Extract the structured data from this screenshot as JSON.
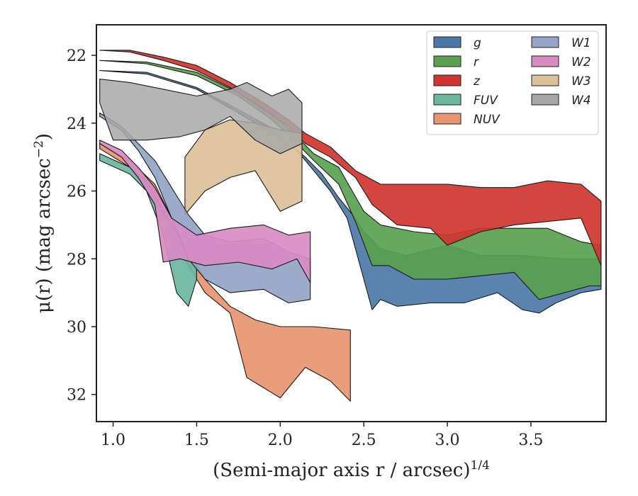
{
  "chart_data": {
    "type": "area",
    "xlabel": "(Semi-major axis r / arcsec)",
    "xlabel_italic": "r",
    "xlabel_exponent": "1/4",
    "ylabel": "μ(r) (mag arcsec",
    "ylabel_exponent": "−2",
    "ylabel_close": ")",
    "xlim": [
      0.9,
      3.95
    ],
    "ylim": [
      32.8,
      21.1
    ],
    "y_inverted": true,
    "xticks": [
      1.0,
      1.5,
      2.0,
      2.5,
      3.0,
      3.5
    ],
    "xtick_labels": [
      "1.0",
      "1.5",
      "2.0",
      "2.5",
      "3.0",
      "3.5"
    ],
    "yticks": [
      22,
      24,
      26,
      28,
      30,
      32
    ],
    "ytick_labels": [
      "22",
      "24",
      "26",
      "28",
      "30",
      "32"
    ],
    "grid": false,
    "legend_position": "top-right",
    "legend_columns": 2,
    "series": [
      {
        "name": "g",
        "color": "#4c78a8",
        "upper": [
          [
            0.92,
            22.45
          ],
          [
            1.2,
            22.5
          ],
          [
            1.5,
            22.95
          ],
          [
            1.75,
            23.6
          ],
          [
            1.95,
            24.15
          ],
          [
            2.05,
            24.6
          ],
          [
            2.15,
            25.0
          ],
          [
            2.25,
            25.5
          ],
          [
            2.35,
            26.2
          ],
          [
            2.45,
            26.8
          ],
          [
            2.5,
            27.2
          ],
          [
            2.6,
            27.7
          ],
          [
            2.75,
            27.9
          ],
          [
            3.0,
            27.6
          ],
          [
            3.2,
            27.9
          ],
          [
            3.45,
            27.9
          ],
          [
            3.7,
            28.0
          ],
          [
            3.92,
            28.0
          ]
        ],
        "lower": [
          [
            0.92,
            22.45
          ],
          [
            1.2,
            22.55
          ],
          [
            1.5,
            23.0
          ],
          [
            1.75,
            23.7
          ],
          [
            1.95,
            24.3
          ],
          [
            2.1,
            24.8
          ],
          [
            2.2,
            25.4
          ],
          [
            2.3,
            26.0
          ],
          [
            2.4,
            26.8
          ],
          [
            2.5,
            28.6
          ],
          [
            2.55,
            29.5
          ],
          [
            2.6,
            29.2
          ],
          [
            2.7,
            29.4
          ],
          [
            2.9,
            29.3
          ],
          [
            3.1,
            29.3
          ],
          [
            3.3,
            29.0
          ],
          [
            3.45,
            29.5
          ],
          [
            3.55,
            29.6
          ],
          [
            3.65,
            29.3
          ],
          [
            3.8,
            29.0
          ],
          [
            3.92,
            28.9
          ]
        ]
      },
      {
        "name": "r",
        "color": "#59a14f",
        "upper": [
          [
            0.92,
            22.15
          ],
          [
            1.2,
            22.2
          ],
          [
            1.5,
            22.5
          ],
          [
            1.75,
            23.1
          ],
          [
            1.95,
            23.7
          ],
          [
            2.1,
            24.4
          ],
          [
            2.2,
            24.9
          ],
          [
            2.35,
            25.3
          ],
          [
            2.5,
            26.6
          ],
          [
            2.6,
            27.0
          ],
          [
            2.8,
            27.2
          ],
          [
            3.0,
            27.3
          ],
          [
            3.2,
            27.1
          ],
          [
            3.4,
            27.1
          ],
          [
            3.6,
            27.1
          ],
          [
            3.8,
            27.5
          ],
          [
            3.92,
            27.6
          ]
        ],
        "lower": [
          [
            0.92,
            22.15
          ],
          [
            1.2,
            22.25
          ],
          [
            1.5,
            22.6
          ],
          [
            1.75,
            23.2
          ],
          [
            1.95,
            23.9
          ],
          [
            2.1,
            24.6
          ],
          [
            2.2,
            25.1
          ],
          [
            2.35,
            25.8
          ],
          [
            2.45,
            26.9
          ],
          [
            2.55,
            28.2
          ],
          [
            2.65,
            28.2
          ],
          [
            2.8,
            28.6
          ],
          [
            3.0,
            28.6
          ],
          [
            3.2,
            28.5
          ],
          [
            3.4,
            28.4
          ],
          [
            3.55,
            29.2
          ],
          [
            3.7,
            29.0
          ],
          [
            3.85,
            28.8
          ],
          [
            3.92,
            28.8
          ]
        ]
      },
      {
        "name": "z",
        "color": "#d1352f",
        "upper": [
          [
            0.92,
            21.85
          ],
          [
            1.1,
            21.85
          ],
          [
            1.3,
            22.05
          ],
          [
            1.5,
            22.3
          ],
          [
            1.7,
            22.8
          ],
          [
            1.9,
            23.4
          ],
          [
            2.05,
            23.9
          ],
          [
            2.15,
            24.3
          ],
          [
            2.3,
            24.7
          ],
          [
            2.45,
            25.4
          ],
          [
            2.6,
            25.8
          ],
          [
            2.8,
            25.8
          ],
          [
            3.0,
            25.8
          ],
          [
            3.2,
            25.9
          ],
          [
            3.4,
            25.9
          ],
          [
            3.6,
            25.7
          ],
          [
            3.8,
            25.8
          ],
          [
            3.92,
            26.3
          ]
        ],
        "lower": [
          [
            0.92,
            21.85
          ],
          [
            1.1,
            21.9
          ],
          [
            1.3,
            22.15
          ],
          [
            1.5,
            22.45
          ],
          [
            1.7,
            22.95
          ],
          [
            1.9,
            23.6
          ],
          [
            2.05,
            24.1
          ],
          [
            2.15,
            24.6
          ],
          [
            2.3,
            25.0
          ],
          [
            2.45,
            25.6
          ],
          [
            2.55,
            26.4
          ],
          [
            2.7,
            27.0
          ],
          [
            2.9,
            27.1
          ],
          [
            3.0,
            27.6
          ],
          [
            3.2,
            27.2
          ],
          [
            3.4,
            27.0
          ],
          [
            3.6,
            26.9
          ],
          [
            3.8,
            26.8
          ],
          [
            3.92,
            28.2
          ]
        ]
      },
      {
        "name": "FUV",
        "color": "#6ab69f",
        "upper": [
          [
            0.92,
            24.9
          ],
          [
            1.1,
            25.3
          ],
          [
            1.2,
            25.7
          ],
          [
            1.3,
            26.6
          ],
          [
            1.4,
            27.4
          ],
          [
            1.5,
            28.1
          ]
        ],
        "lower": [
          [
            0.92,
            25.1
          ],
          [
            1.1,
            25.5
          ],
          [
            1.2,
            26.0
          ],
          [
            1.3,
            27.3
          ],
          [
            1.38,
            29.0
          ],
          [
            1.45,
            29.4
          ],
          [
            1.5,
            28.6
          ]
        ]
      },
      {
        "name": "NUV",
        "color": "#e8956f",
        "upper": [
          [
            0.92,
            24.6
          ],
          [
            1.1,
            25.1
          ],
          [
            1.25,
            25.8
          ],
          [
            1.4,
            27.3
          ],
          [
            1.55,
            28.6
          ],
          [
            1.7,
            29.4
          ],
          [
            1.85,
            29.8
          ],
          [
            2.0,
            30.0
          ],
          [
            2.2,
            30.0
          ],
          [
            2.42,
            30.1
          ]
        ],
        "lower": [
          [
            0.92,
            24.75
          ],
          [
            1.1,
            25.3
          ],
          [
            1.25,
            26.3
          ],
          [
            1.4,
            27.8
          ],
          [
            1.55,
            29.0
          ],
          [
            1.7,
            29.6
          ],
          [
            1.8,
            31.5
          ],
          [
            1.9,
            31.8
          ],
          [
            2.0,
            32.1
          ],
          [
            2.15,
            31.2
          ],
          [
            2.3,
            31.6
          ],
          [
            2.42,
            32.2
          ]
        ]
      },
      {
        "name": "W1",
        "color": "#94a4c6",
        "upper": [
          [
            0.92,
            23.7
          ],
          [
            1.05,
            24.1
          ],
          [
            1.15,
            24.6
          ],
          [
            1.25,
            25.1
          ],
          [
            1.35,
            25.9
          ],
          [
            1.45,
            26.7
          ],
          [
            1.55,
            27.3
          ],
          [
            1.7,
            27.5
          ],
          [
            1.9,
            27.4
          ],
          [
            2.05,
            27.8
          ],
          [
            2.18,
            28.0
          ]
        ],
        "lower": [
          [
            0.92,
            23.8
          ],
          [
            1.05,
            24.2
          ],
          [
            1.15,
            24.8
          ],
          [
            1.25,
            25.6
          ],
          [
            1.35,
            26.8
          ],
          [
            1.45,
            28.0
          ],
          [
            1.55,
            28.6
          ],
          [
            1.7,
            29.0
          ],
          [
            1.9,
            28.9
          ],
          [
            2.05,
            29.3
          ],
          [
            2.18,
            29.2
          ]
        ]
      },
      {
        "name": "W2",
        "color": "#d98bc4",
        "upper": [
          [
            0.92,
            24.5
          ],
          [
            1.05,
            24.8
          ],
          [
            1.15,
            25.3
          ],
          [
            1.25,
            25.9
          ],
          [
            1.35,
            26.8
          ],
          [
            1.5,
            27.3
          ],
          [
            1.7,
            27.1
          ],
          [
            1.9,
            27.0
          ],
          [
            2.05,
            27.3
          ],
          [
            2.18,
            27.2
          ]
        ],
        "lower": [
          [
            0.92,
            24.6
          ],
          [
            1.05,
            25.0
          ],
          [
            1.15,
            25.6
          ],
          [
            1.25,
            26.4
          ],
          [
            1.3,
            28.1
          ],
          [
            1.4,
            28.0
          ],
          [
            1.55,
            28.2
          ],
          [
            1.75,
            28.1
          ],
          [
            1.95,
            28.3
          ],
          [
            2.1,
            28.0
          ],
          [
            2.18,
            28.7
          ]
        ]
      },
      {
        "name": "W3",
        "color": "#dcc09a",
        "upper": [
          [
            1.43,
            25.0
          ],
          [
            1.55,
            24.2
          ],
          [
            1.7,
            23.9
          ],
          [
            1.85,
            24.0
          ],
          [
            2.0,
            24.2
          ],
          [
            2.13,
            24.3
          ]
        ],
        "lower": [
          [
            1.43,
            26.7
          ],
          [
            1.55,
            26.0
          ],
          [
            1.7,
            25.6
          ],
          [
            1.85,
            25.4
          ],
          [
            2.0,
            26.6
          ],
          [
            2.13,
            26.3
          ]
        ]
      },
      {
        "name": "W4",
        "color": "#a8a8a8",
        "upper": [
          [
            0.92,
            22.7
          ],
          [
            1.1,
            22.8
          ],
          [
            1.3,
            23.0
          ],
          [
            1.5,
            23.2
          ],
          [
            1.7,
            23.0
          ],
          [
            1.8,
            22.8
          ],
          [
            1.95,
            23.2
          ],
          [
            2.05,
            23.0
          ],
          [
            2.13,
            23.4
          ]
        ],
        "lower": [
          [
            0.92,
            23.4
          ],
          [
            1.0,
            24.5
          ],
          [
            1.2,
            24.5
          ],
          [
            1.4,
            24.4
          ],
          [
            1.55,
            24.2
          ],
          [
            1.7,
            23.8
          ],
          [
            1.85,
            24.5
          ],
          [
            2.0,
            24.9
          ],
          [
            2.13,
            24.6
          ]
        ]
      }
    ]
  }
}
